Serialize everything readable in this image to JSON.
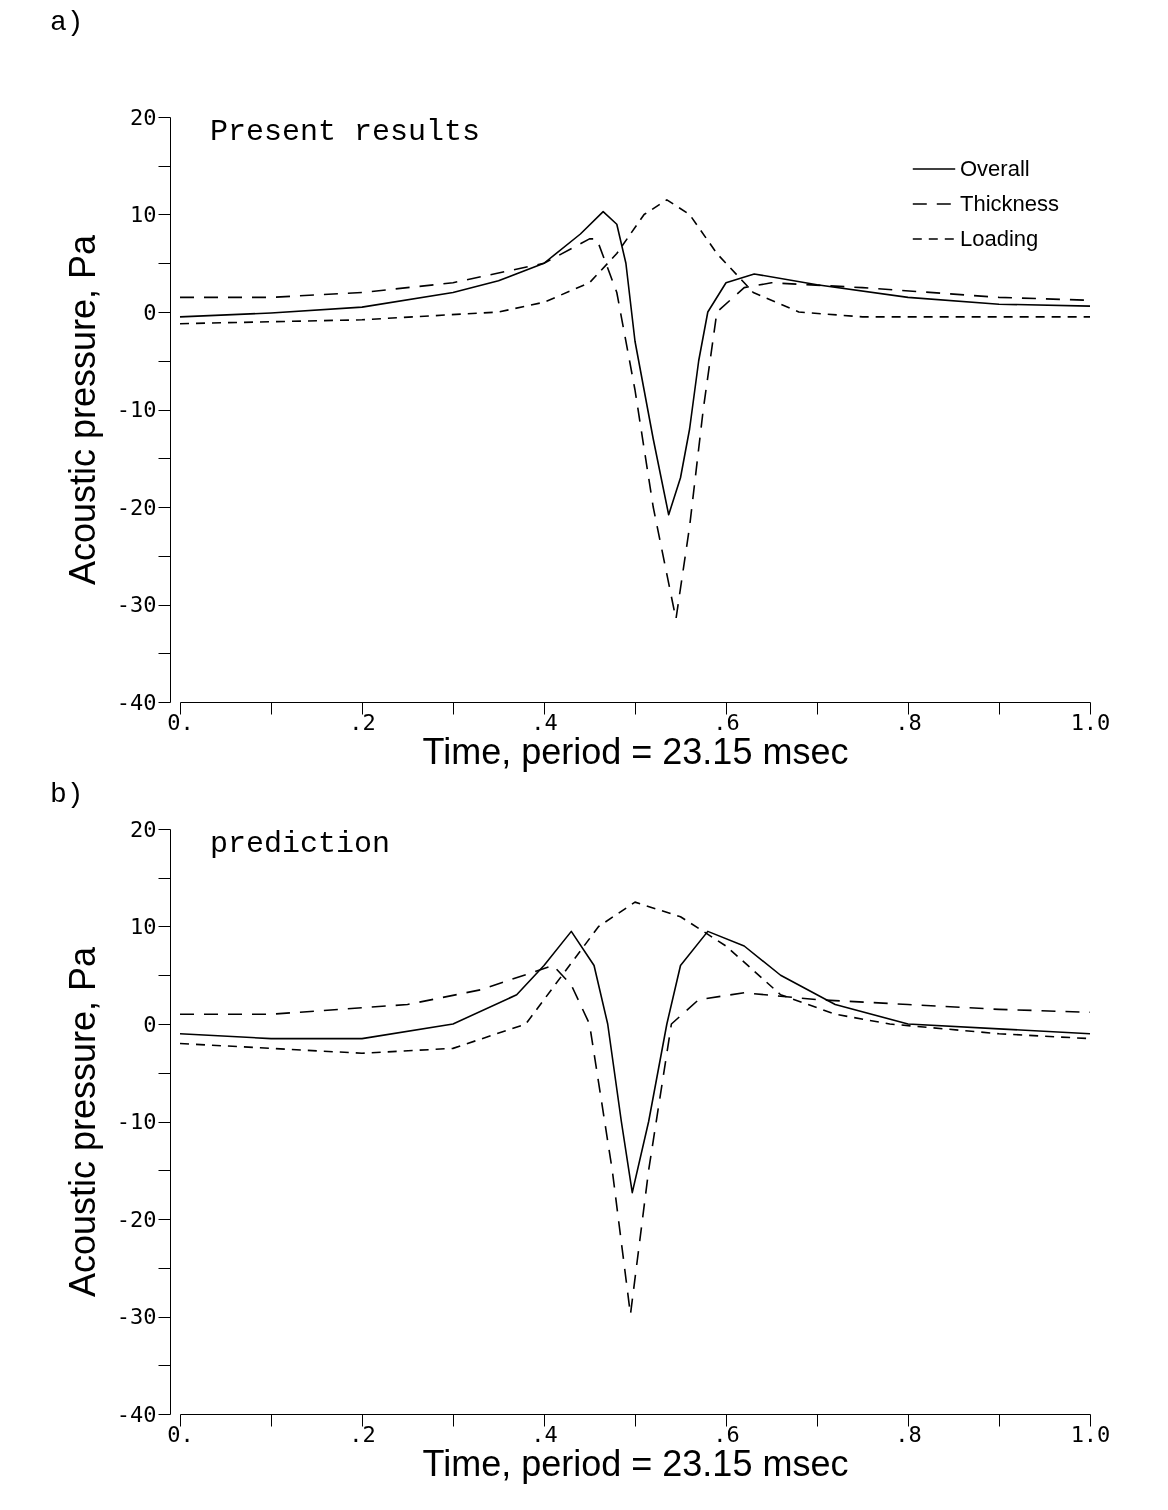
{
  "chart_data": [
    {
      "type": "line",
      "title": "Present results",
      "annotations": [
        "a)"
      ],
      "xlabel": "Time, period = 23.15 msec",
      "ylabel": "Acoustic pressure, Pa",
      "xlim": [
        0,
        1
      ],
      "ylim": [
        -40,
        20
      ],
      "xticks": [
        {
          "value": 0,
          "label": "0."
        },
        {
          "value": 0.1,
          "label": null
        },
        {
          "value": 0.2,
          "label": ".2"
        },
        {
          "value": 0.3,
          "label": null
        },
        {
          "value": 0.4,
          "label": ".4"
        },
        {
          "value": 0.5,
          "label": null
        },
        {
          "value": 0.6,
          "label": ".6"
        },
        {
          "value": 0.7,
          "label": null
        },
        {
          "value": 0.8,
          "label": ".8"
        },
        {
          "value": 0.9,
          "label": null
        },
        {
          "value": 1,
          "label": "1.0"
        }
      ],
      "yticks": [
        -40,
        {
          "value": -35,
          "label": null
        },
        -30,
        {
          "value": -25,
          "label": null
        },
        -20,
        {
          "value": -15,
          "label": null
        },
        -10,
        {
          "value": -5,
          "label": null
        },
        0,
        {
          "value": 5,
          "label": null
        },
        10,
        {
          "value": 15,
          "label": null
        },
        20
      ],
      "grid": false,
      "legend": "top right",
      "marker": "none",
      "series": [
        {
          "name": "Overall",
          "color": "#000000",
          "line_style": "solid",
          "x": [
            0,
            0.1,
            0.2,
            0.3,
            0.35,
            0.4,
            0.44,
            0.465,
            0.48,
            0.49,
            0.5,
            0.51,
            0.52,
            0.537,
            0.55,
            0.56,
            0.57,
            0.58,
            0.6,
            0.631,
            0.7,
            0.8,
            0.9,
            1
          ],
          "values": [
            -0.5,
            -0.1,
            0.5,
            2,
            3.2,
            5,
            8,
            10.3,
            9,
            5,
            -3,
            -8,
            -13,
            -20.8,
            -17,
            -12,
            -5,
            0,
            3,
            3.9,
            2.8,
            1.5,
            0.8,
            0.6
          ]
        },
        {
          "name": "Thickness",
          "color": "#000000",
          "line_style": "dashed",
          "x": [
            0,
            0.1,
            0.2,
            0.3,
            0.4,
            0.45,
            0.458,
            0.48,
            0.5,
            0.52,
            0.545,
            0.56,
            0.575,
            0.59,
            0.62,
            0.65,
            0.75,
            0.9,
            1
          ],
          "values": [
            1.5,
            1.5,
            2,
            3,
            5,
            7.5,
            7.5,
            2,
            -8,
            -20,
            -31.5,
            -22,
            -10,
            0,
            2.5,
            3,
            2.5,
            1.5,
            1.2
          ]
        },
        {
          "name": "Loading",
          "color": "#000000",
          "line_style": "dashed",
          "x": [
            0,
            0.2,
            0.35,
            0.4,
            0.45,
            0.48,
            0.51,
            0.535,
            0.56,
            0.59,
            0.63,
            0.68,
            0.75,
            1
          ],
          "values": [
            -1.2,
            -0.8,
            0,
            1,
            3,
            6,
            10,
            11.5,
            10,
            6,
            2,
            0,
            -0.5,
            -0.5
          ]
        }
      ]
    },
    {
      "type": "line",
      "title": "prediction",
      "annotations": [
        "b)"
      ],
      "xlabel": "Time, period = 23.15 msec",
      "ylabel": "Acoustic pressure, Pa",
      "xlim": [
        0,
        1
      ],
      "ylim": [
        -40,
        20
      ],
      "xticks": [
        {
          "value": 0,
          "label": "0."
        },
        {
          "value": 0.1,
          "label": null
        },
        {
          "value": 0.2,
          "label": ".2"
        },
        {
          "value": 0.3,
          "label": null
        },
        {
          "value": 0.4,
          "label": ".4"
        },
        {
          "value": 0.5,
          "label": null
        },
        {
          "value": 0.6,
          "label": ".6"
        },
        {
          "value": 0.7,
          "label": null
        },
        {
          "value": 0.8,
          "label": ".8"
        },
        {
          "value": 0.9,
          "label": null
        },
        {
          "value": 1,
          "label": "1.0"
        }
      ],
      "yticks": [
        -40,
        {
          "value": -35,
          "label": null
        },
        -30,
        {
          "value": -25,
          "label": null
        },
        -20,
        {
          "value": -15,
          "label": null
        },
        -10,
        {
          "value": -5,
          "label": null
        },
        0,
        {
          "value": 5,
          "label": null
        },
        10,
        {
          "value": 15,
          "label": null
        },
        20
      ],
      "grid": false,
      "legend": "top right",
      "marker": "none",
      "series": [
        {
          "name": "Overall",
          "color": "#000000",
          "line_style": "solid",
          "x": [
            0,
            0.1,
            0.2,
            0.3,
            0.37,
            0.4,
            0.43,
            0.455,
            0.47,
            0.485,
            0.497,
            0.515,
            0.535,
            0.55,
            0.58,
            0.62,
            0.66,
            0.72,
            0.8,
            0.9,
            1
          ],
          "values": [
            -1,
            -1.5,
            -1.5,
            0,
            3,
            6,
            9.5,
            6,
            0,
            -10,
            -17.3,
            -10,
            0,
            6,
            9.5,
            8,
            5,
            2,
            0,
            -0.5,
            -1
          ]
        },
        {
          "name": "Thickness",
          "color": "#000000",
          "line_style": "dashed",
          "x": [
            0,
            0.1,
            0.25,
            0.33,
            0.41,
            0.43,
            0.45,
            0.475,
            0.495,
            0.515,
            0.54,
            0.57,
            0.62,
            0.7,
            0.8,
            0.9,
            1
          ],
          "values": [
            1,
            1,
            2,
            3.5,
            6,
            4,
            0,
            -15,
            -29.8,
            -15,
            0,
            2.5,
            3.2,
            2.5,
            2,
            1.5,
            1.2
          ]
        },
        {
          "name": "Loading",
          "color": "#000000",
          "line_style": "dashed",
          "x": [
            0,
            0.2,
            0.3,
            0.38,
            0.42,
            0.46,
            0.5,
            0.55,
            0.6,
            0.66,
            0.72,
            0.78,
            0.9,
            1
          ],
          "values": [
            -2,
            -3,
            -2.5,
            0,
            5,
            10,
            12.5,
            11,
            8,
            3,
            1,
            0,
            -1,
            -1.5
          ]
        }
      ]
    }
  ]
}
